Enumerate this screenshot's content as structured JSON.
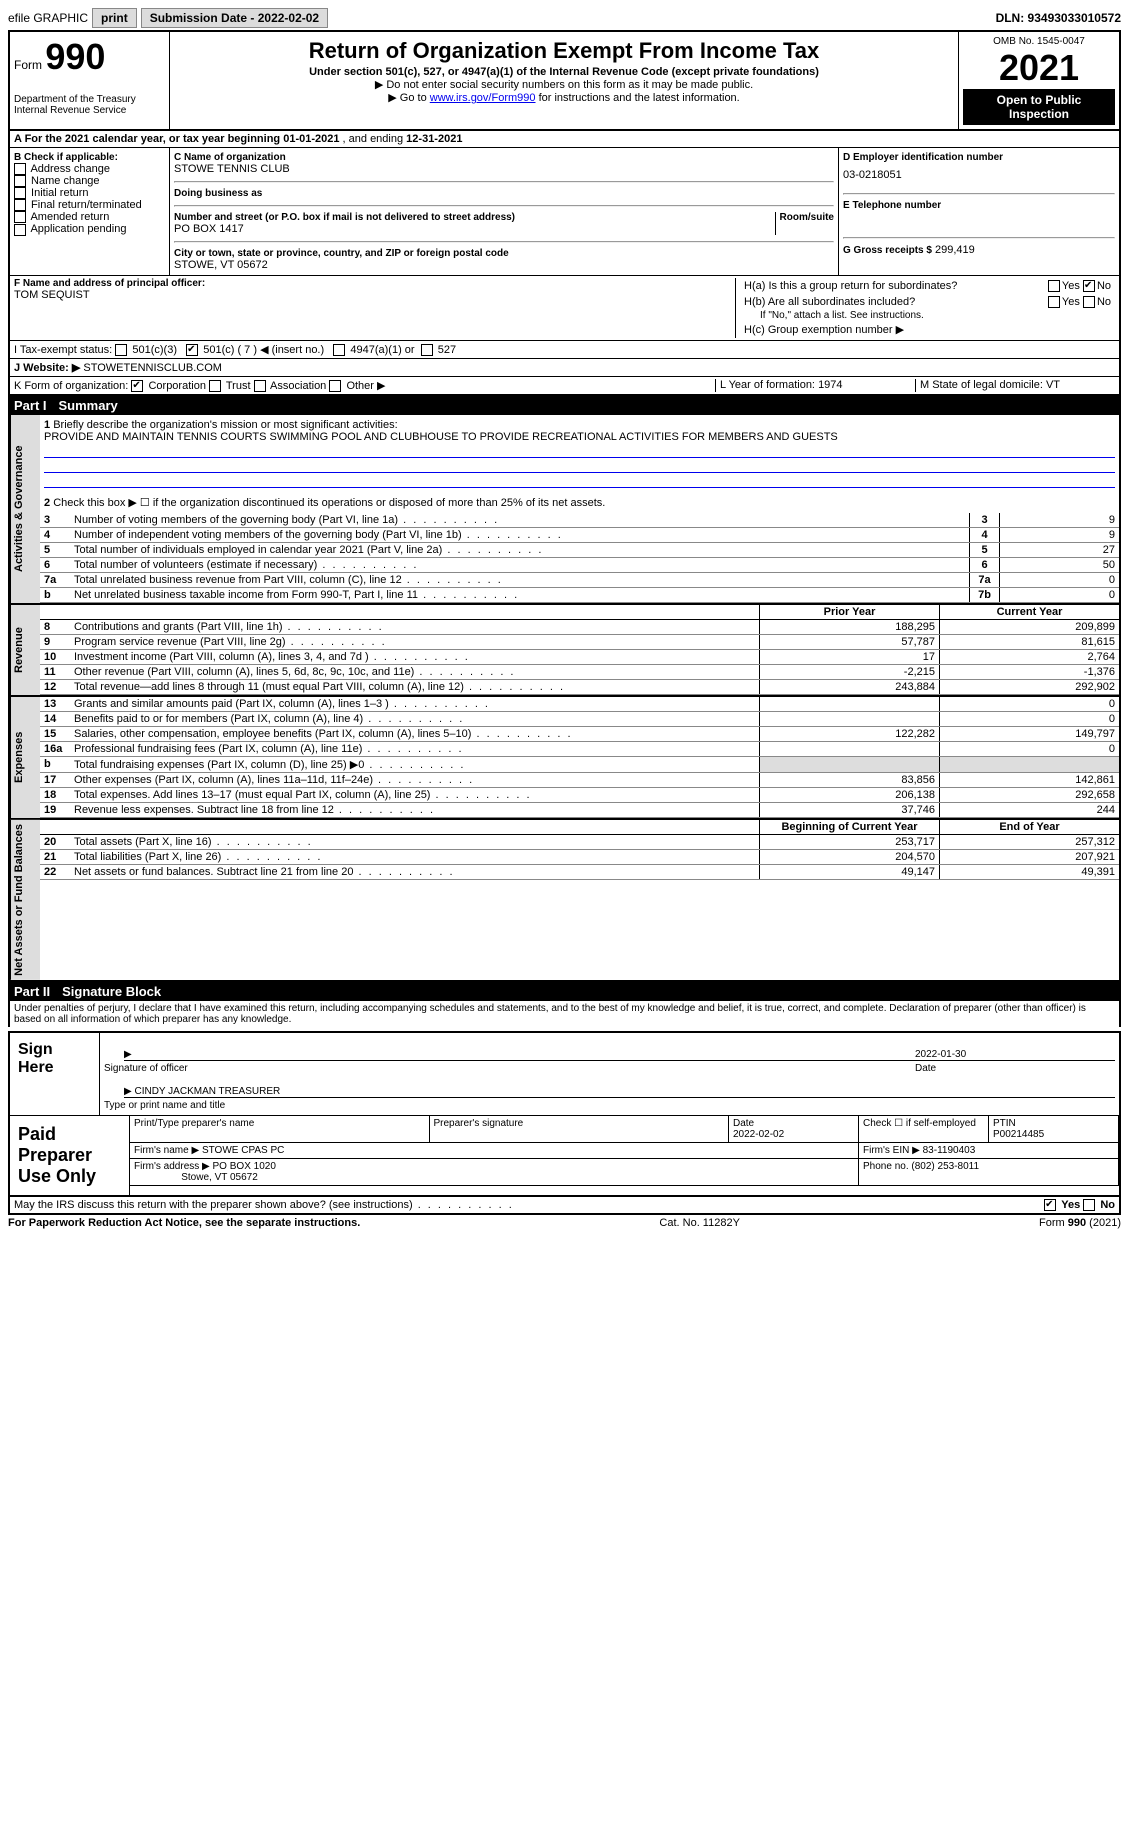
{
  "topbar": {
    "efile_label": "efile GRAPHIC",
    "print_btn": "print",
    "submission_label": "Submission Date - 2022-02-02",
    "dln": "DLN: 93493033010572"
  },
  "header": {
    "form_prefix": "Form",
    "form_number": "990",
    "dept": "Department of the Treasury\nInternal Revenue Service",
    "title": "Return of Organization Exempt From Income Tax",
    "subtitle": "Under section 501(c), 527, or 4947(a)(1) of the Internal Revenue Code (except private foundations)",
    "note1": "▶ Do not enter social security numbers on this form as it may be made public.",
    "note2_pre": "▶ Go to ",
    "note2_link": "www.irs.gov/Form990",
    "note2_post": " for instructions and the latest information.",
    "omb": "OMB No. 1545-0047",
    "year": "2021",
    "open_public": "Open to Public Inspection"
  },
  "period": {
    "label": "A For the 2021 calendar year, or tax year beginning ",
    "begin": "01-01-2021",
    "mid": " , and ending ",
    "end": "12-31-2021"
  },
  "boxB": {
    "label": "B Check if applicable:",
    "items": [
      "Address change",
      "Name change",
      "Initial return",
      "Final return/terminated",
      "Amended return",
      "Application pending"
    ]
  },
  "boxC": {
    "label": "C Name of organization",
    "name": "STOWE TENNIS CLUB",
    "dba_label": "Doing business as",
    "addr_label": "Number and street (or P.O. box if mail is not delivered to street address)",
    "room_label": "Room/suite",
    "addr": "PO BOX 1417",
    "city_label": "City or town, state or province, country, and ZIP or foreign postal code",
    "city": "STOWE, VT  05672"
  },
  "boxD": {
    "label": "D Employer identification number",
    "val": "03-0218051"
  },
  "boxE": {
    "label": "E Telephone number",
    "val": ""
  },
  "boxG": {
    "label": "G Gross receipts $",
    "val": "299,419"
  },
  "boxF": {
    "label": "F Name and address of principal officer:",
    "val": "TOM SEQUIST"
  },
  "boxH": {
    "a_label": "H(a) Is this a group return for subordinates?",
    "a_no_checked": true,
    "b_label": "H(b) Are all subordinates included?",
    "note": "If \"No,\" attach a list. See instructions.",
    "c_label": "H(c) Group exemption number ▶"
  },
  "boxI": {
    "label": "I   Tax-exempt status:",
    "c3": "501(c)(3)",
    "c7_pre": "501(c) ( 7 ) ◀ (insert no.)",
    "a4947": "4947(a)(1) or",
    "s527": "527"
  },
  "boxJ": {
    "label": "J   Website: ▶",
    "val": "STOWETENNISCLUB.COM"
  },
  "boxK": {
    "label": "K Form of organization:",
    "corp": "Corporation",
    "trust": "Trust",
    "assoc": "Association",
    "other": "Other ▶"
  },
  "boxL": {
    "label": "L Year of formation:",
    "val": "1974"
  },
  "boxM": {
    "label": "M State of legal domicile:",
    "val": "VT"
  },
  "part1": {
    "title": "Part I",
    "subtitle": "Summary",
    "line1_label": "Briefly describe the organization's mission or most significant activities:",
    "line1_val": "PROVIDE AND MAINTAIN TENNIS COURTS SWIMMING POOL AND CLUBHOUSE TO PROVIDE RECREATIONAL ACTIVITIES FOR MEMBERS AND GUESTS",
    "line2_label": "Check this box ▶ ☐ if the organization discontinued its operations or disposed of more than 25% of its net assets.",
    "rows_single": [
      {
        "n": "3",
        "label": "Number of voting members of the governing body (Part VI, line 1a)",
        "box": "3",
        "val": "9"
      },
      {
        "n": "4",
        "label": "Number of independent voting members of the governing body (Part VI, line 1b)",
        "box": "4",
        "val": "9"
      },
      {
        "n": "5",
        "label": "Total number of individuals employed in calendar year 2021 (Part V, line 2a)",
        "box": "5",
        "val": "27"
      },
      {
        "n": "6",
        "label": "Total number of volunteers (estimate if necessary)",
        "box": "6",
        "val": "50"
      },
      {
        "n": "7a",
        "label": "Total unrelated business revenue from Part VIII, column (C), line 12",
        "box": "7a",
        "val": "0"
      },
      {
        "n": "b",
        "label": "Net unrelated business taxable income from Form 990-T, Part I, line 11",
        "box": "7b",
        "val": "0"
      }
    ],
    "col_prior": "Prior Year",
    "col_current": "Current Year",
    "revenue_rows": [
      {
        "n": "8",
        "label": "Contributions and grants (Part VIII, line 1h)",
        "p": "188,295",
        "c": "209,899"
      },
      {
        "n": "9",
        "label": "Program service revenue (Part VIII, line 2g)",
        "p": "57,787",
        "c": "81,615"
      },
      {
        "n": "10",
        "label": "Investment income (Part VIII, column (A), lines 3, 4, and 7d )",
        "p": "17",
        "c": "2,764"
      },
      {
        "n": "11",
        "label": "Other revenue (Part VIII, column (A), lines 5, 6d, 8c, 9c, 10c, and 11e)",
        "p": "-2,215",
        "c": "-1,376"
      },
      {
        "n": "12",
        "label": "Total revenue—add lines 8 through 11 (must equal Part VIII, column (A), line 12)",
        "p": "243,884",
        "c": "292,902"
      }
    ],
    "expense_rows": [
      {
        "n": "13",
        "label": "Grants and similar amounts paid (Part IX, column (A), lines 1–3 )",
        "p": "",
        "c": "0"
      },
      {
        "n": "14",
        "label": "Benefits paid to or for members (Part IX, column (A), line 4)",
        "p": "",
        "c": "0"
      },
      {
        "n": "15",
        "label": "Salaries, other compensation, employee benefits (Part IX, column (A), lines 5–10)",
        "p": "122,282",
        "c": "149,797"
      },
      {
        "n": "16a",
        "label": "Professional fundraising fees (Part IX, column (A), line 11e)",
        "p": "",
        "c": "0"
      },
      {
        "n": "b",
        "label": "Total fundraising expenses (Part IX, column (D), line 25) ▶0",
        "p": "",
        "c": "",
        "shade": true
      },
      {
        "n": "17",
        "label": "Other expenses (Part IX, column (A), lines 11a–11d, 11f–24e)",
        "p": "83,856",
        "c": "142,861"
      },
      {
        "n": "18",
        "label": "Total expenses. Add lines 13–17 (must equal Part IX, column (A), line 25)",
        "p": "206,138",
        "c": "292,658"
      },
      {
        "n": "19",
        "label": "Revenue less expenses. Subtract line 18 from line 12",
        "p": "37,746",
        "c": "244"
      }
    ],
    "col_begin": "Beginning of Current Year",
    "col_end": "End of Year",
    "net_rows": [
      {
        "n": "20",
        "label": "Total assets (Part X, line 16)",
        "p": "253,717",
        "c": "257,312"
      },
      {
        "n": "21",
        "label": "Total liabilities (Part X, line 26)",
        "p": "204,570",
        "c": "207,921"
      },
      {
        "n": "22",
        "label": "Net assets or fund balances. Subtract line 21 from line 20",
        "p": "49,147",
        "c": "49,391"
      }
    ],
    "vtab_gov": "Activities & Governance",
    "vtab_rev": "Revenue",
    "vtab_exp": "Expenses",
    "vtab_net": "Net Assets or Fund Balances"
  },
  "part2": {
    "title": "Part II",
    "subtitle": "Signature Block",
    "penalty": "Under penalties of perjury, I declare that I have examined this return, including accompanying schedules and statements, and to the best of my knowledge and belief, it is true, correct, and complete. Declaration of preparer (other than officer) is based on all information of which preparer has any knowledge.",
    "sign_here": "Sign Here",
    "sig_officer": "Signature of officer",
    "sig_date": "2022-01-30",
    "sig_date_label": "Date",
    "sig_name": "CINDY JACKMAN  TREASURER",
    "sig_name_label": "Type or print name and title",
    "paid_prep": "Paid Preparer Use Only",
    "prep_name_label": "Print/Type preparer's name",
    "prep_sig_label": "Preparer's signature",
    "prep_date_label": "Date",
    "prep_date": "2022-02-02",
    "prep_check_label": "Check ☐ if self-employed",
    "ptin_label": "PTIN",
    "ptin": "P00214485",
    "firm_name_label": "Firm's name   ▶",
    "firm_name": "STOWE CPAS PC",
    "firm_ein_label": "Firm's EIN ▶",
    "firm_ein": "83-1190403",
    "firm_addr_label": "Firm's address ▶",
    "firm_addr": "PO BOX 1020",
    "firm_city": "Stowe, VT  05672",
    "firm_phone_label": "Phone no.",
    "firm_phone": "(802) 253-8011",
    "discuss": "May the IRS discuss this return with the preparer shown above? (see instructions)",
    "yes": "Yes",
    "no": "No"
  },
  "footer": {
    "pra": "For Paperwork Reduction Act Notice, see the separate instructions.",
    "cat": "Cat. No. 11282Y",
    "form": "Form 990 (2021)"
  }
}
